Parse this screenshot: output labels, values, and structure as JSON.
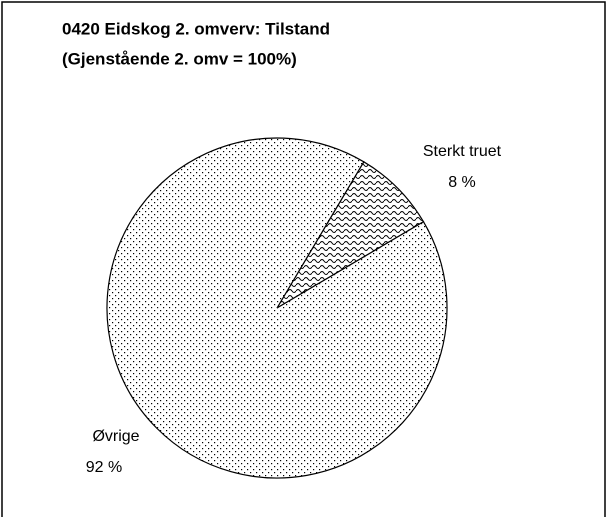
{
  "chart_data": {
    "type": "pie",
    "title": [
      "0420 Eidskog 2. omverv: Tilstand",
      "(Gjenstående 2. omv = 100%)"
    ],
    "categories": [
      "Sterkt truet",
      "Øvrige"
    ],
    "values": [
      8,
      92
    ],
    "value_labels": [
      "8 %",
      "92 %"
    ]
  }
}
